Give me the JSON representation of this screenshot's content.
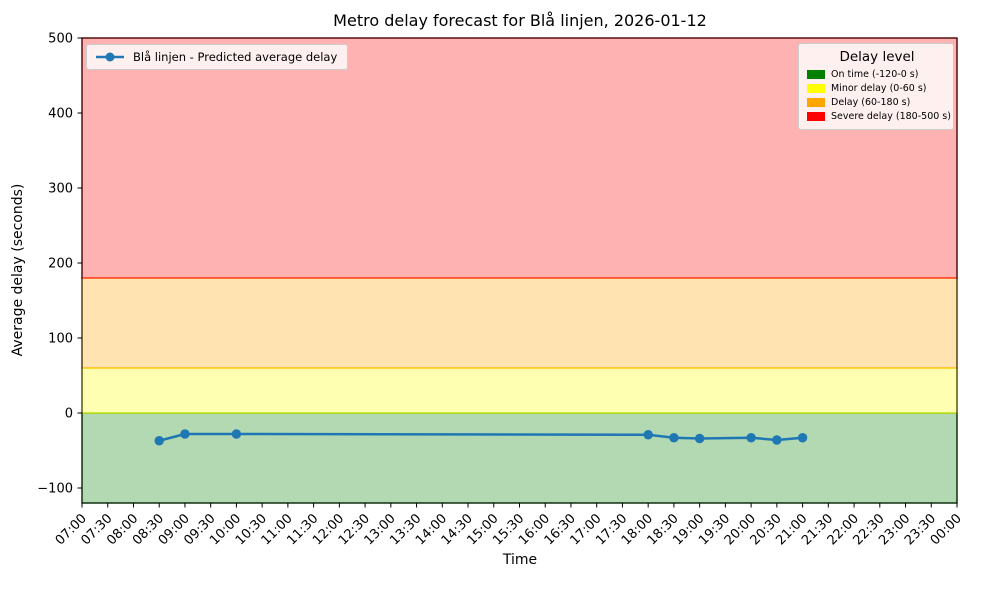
{
  "chart_data": {
    "type": "line",
    "title": "Metro delay forecast for Blå linjen, 2026-01-12",
    "xlabel": "Time",
    "ylabel": "Average delay (seconds)",
    "ylim": [
      -120,
      500
    ],
    "yticks": [
      -100,
      0,
      100,
      200,
      300,
      400,
      500
    ],
    "xticks": [
      "07:00",
      "07:30",
      "08:00",
      "08:30",
      "09:00",
      "09:30",
      "10:00",
      "10:30",
      "11:00",
      "11:30",
      "12:00",
      "12:30",
      "13:00",
      "13:30",
      "14:00",
      "14:30",
      "15:00",
      "15:30",
      "16:00",
      "16:30",
      "17:00",
      "17:30",
      "18:00",
      "18:30",
      "19:00",
      "19:30",
      "20:00",
      "20:30",
      "21:00",
      "21:30",
      "22:00",
      "22:30",
      "23:00",
      "23:30",
      "00:00"
    ],
    "grid": false,
    "legend_title": "Delay level",
    "legend_series_position": "upper left",
    "legend_bands_position": "upper right",
    "series": [
      {
        "name": "Blå linjen - Predicted average delay",
        "color": "#1f77b4",
        "marker": "circle",
        "points": [
          {
            "time": "08:30",
            "delay_s": -37
          },
          {
            "time": "09:00",
            "delay_s": -28
          },
          {
            "time": "10:00",
            "delay_s": -28
          },
          {
            "time": "18:00",
            "delay_s": -29
          },
          {
            "time": "18:30",
            "delay_s": -33
          },
          {
            "time": "19:00",
            "delay_s": -34
          },
          {
            "time": "20:00",
            "delay_s": -33
          },
          {
            "time": "20:30",
            "delay_s": -36
          },
          {
            "time": "21:00",
            "delay_s": -33
          }
        ]
      }
    ],
    "bands": [
      {
        "label": "On time (-120-0 s)",
        "color": "#008000",
        "from": -120,
        "to": 0
      },
      {
        "label": "Minor delay (0-60 s)",
        "color": "#ffff00",
        "from": 0,
        "to": 60
      },
      {
        "label": "Delay (60-180 s)",
        "color": "#ffa500",
        "from": 60,
        "to": 180
      },
      {
        "label": "Severe delay (180-500 s)",
        "color": "#ff0000",
        "from": 180,
        "to": 500
      }
    ],
    "band_alpha": 0.3
  }
}
